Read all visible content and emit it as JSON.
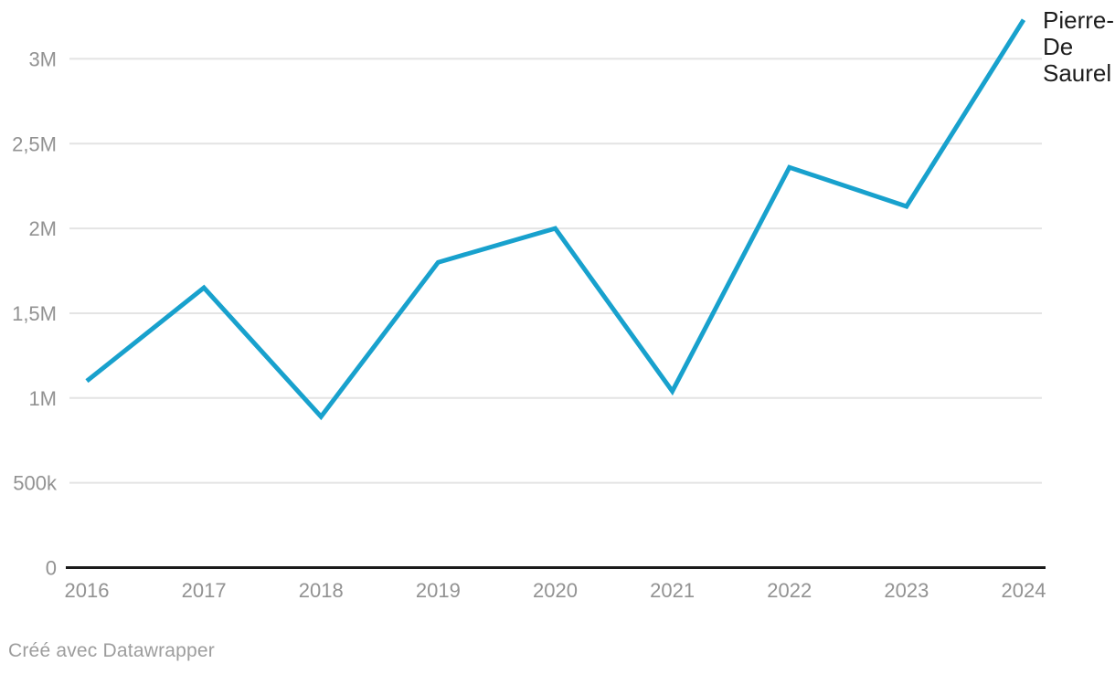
{
  "chart_data": {
    "type": "line",
    "title": "",
    "xlabel": "",
    "ylabel": "",
    "x": [
      "2016",
      "2017",
      "2018",
      "2019",
      "2020",
      "2021",
      "2022",
      "2023",
      "2024"
    ],
    "series": [
      {
        "name": "Pierre-De Saurel",
        "label_lines": [
          "Pierre-",
          "De",
          "Saurel"
        ],
        "color": "#18a1cd",
        "values": [
          1100000,
          1650000,
          890000,
          1800000,
          2000000,
          1040000,
          2360000,
          2130000,
          3230000
        ]
      }
    ],
    "y_ticks": [
      {
        "value": 0,
        "label": "0"
      },
      {
        "value": 500000,
        "label": "500k"
      },
      {
        "value": 1000000,
        "label": "1M"
      },
      {
        "value": 1500000,
        "label": "1,5M"
      },
      {
        "value": 2000000,
        "label": "2M"
      },
      {
        "value": 2500000,
        "label": "2,5M"
      },
      {
        "value": 3000000,
        "label": "3M"
      }
    ],
    "ylim": [
      0,
      3300000
    ],
    "grid": true,
    "legend_position": "line-end-label",
    "number_format": "french-abbreviated"
  },
  "footer": {
    "attribution": "Créé avec Datawrapper"
  },
  "colors": {
    "line": "#18a1cd",
    "axis": "#1a1a1a",
    "gridline": "#e4e4e4",
    "tick_label": "#929292",
    "series_label": "#1d1d1d",
    "attribution": "#9d9d9d",
    "background": "#ffffff"
  }
}
